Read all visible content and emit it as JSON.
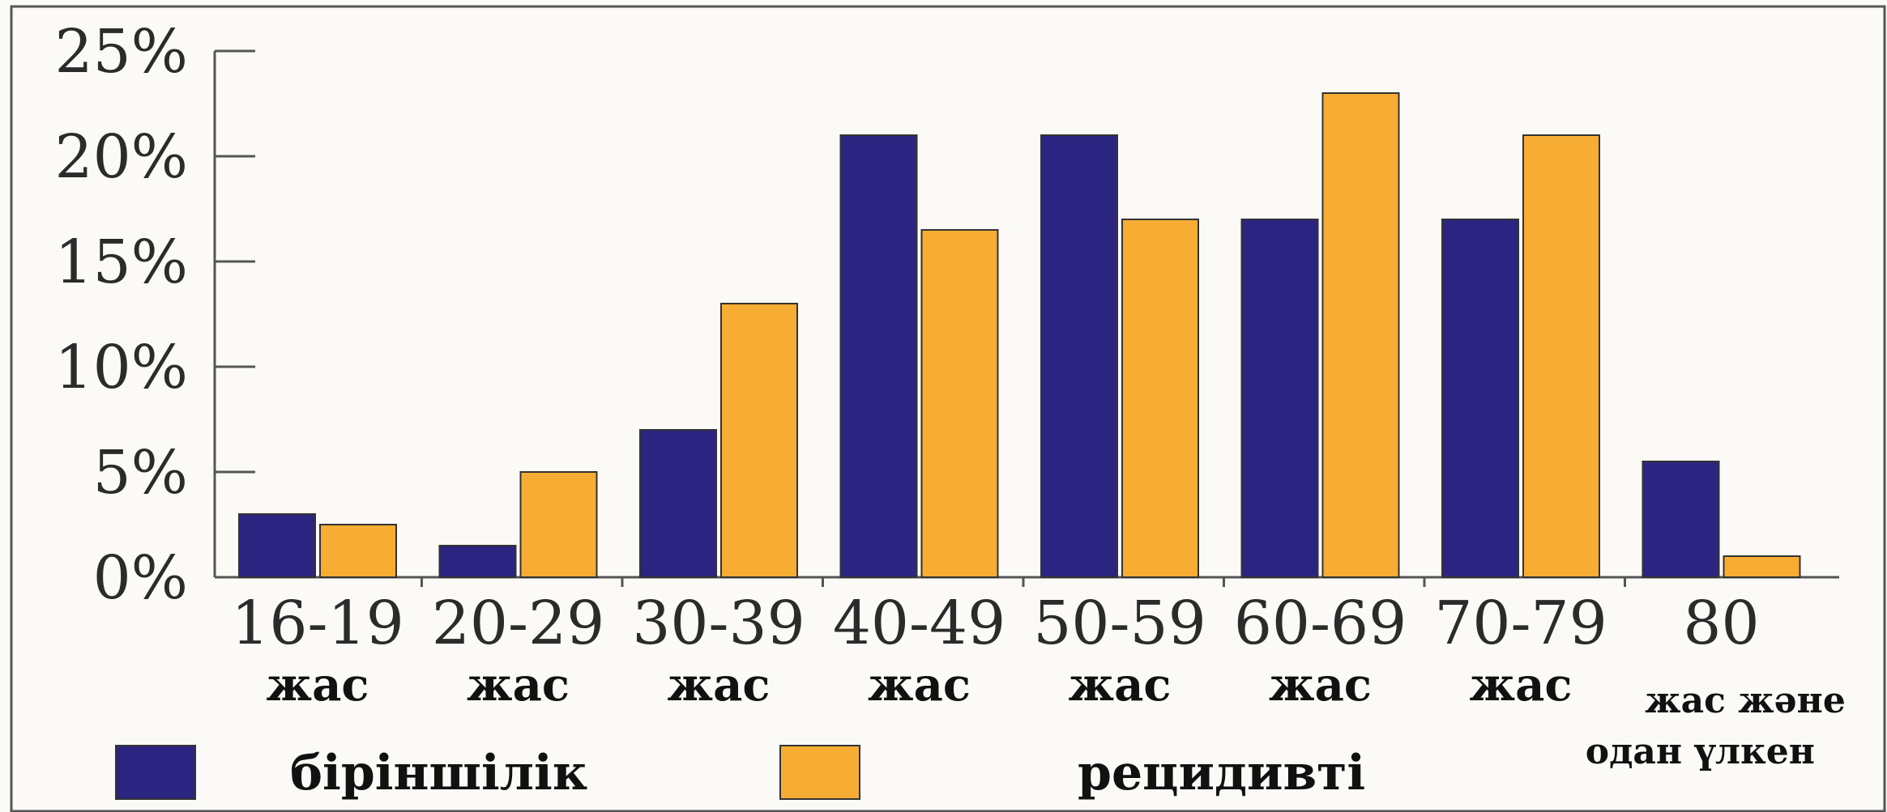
{
  "chart_data": {
    "type": "bar",
    "categories": [
      "16-19",
      "20-29",
      "30-39",
      "40-49",
      "50-59",
      "60-69",
      "70-79",
      "80"
    ],
    "category_sublabels": [
      "жас",
      "жас",
      "жас",
      "жас",
      "жас",
      "жас",
      "жас",
      "жас және"
    ],
    "last_sublabel_line2": "одан үлкен",
    "series": [
      {
        "name": "біріншілік",
        "color": "#2b2581",
        "values": [
          3,
          1.5,
          7,
          21,
          21,
          17,
          17,
          5.5
        ]
      },
      {
        "name": "рецидивті",
        "color": "#f7ad33",
        "values": [
          2.5,
          5,
          13,
          16.5,
          17,
          23,
          21,
          1
        ]
      }
    ],
    "y_ticks": [
      "0%",
      "5%",
      "10%",
      "15%",
      "20%",
      "25%"
    ],
    "ylim": [
      0,
      25
    ],
    "xlabel": "",
    "ylabel": "",
    "title": "",
    "legend_position": "bottom",
    "grid": false
  }
}
